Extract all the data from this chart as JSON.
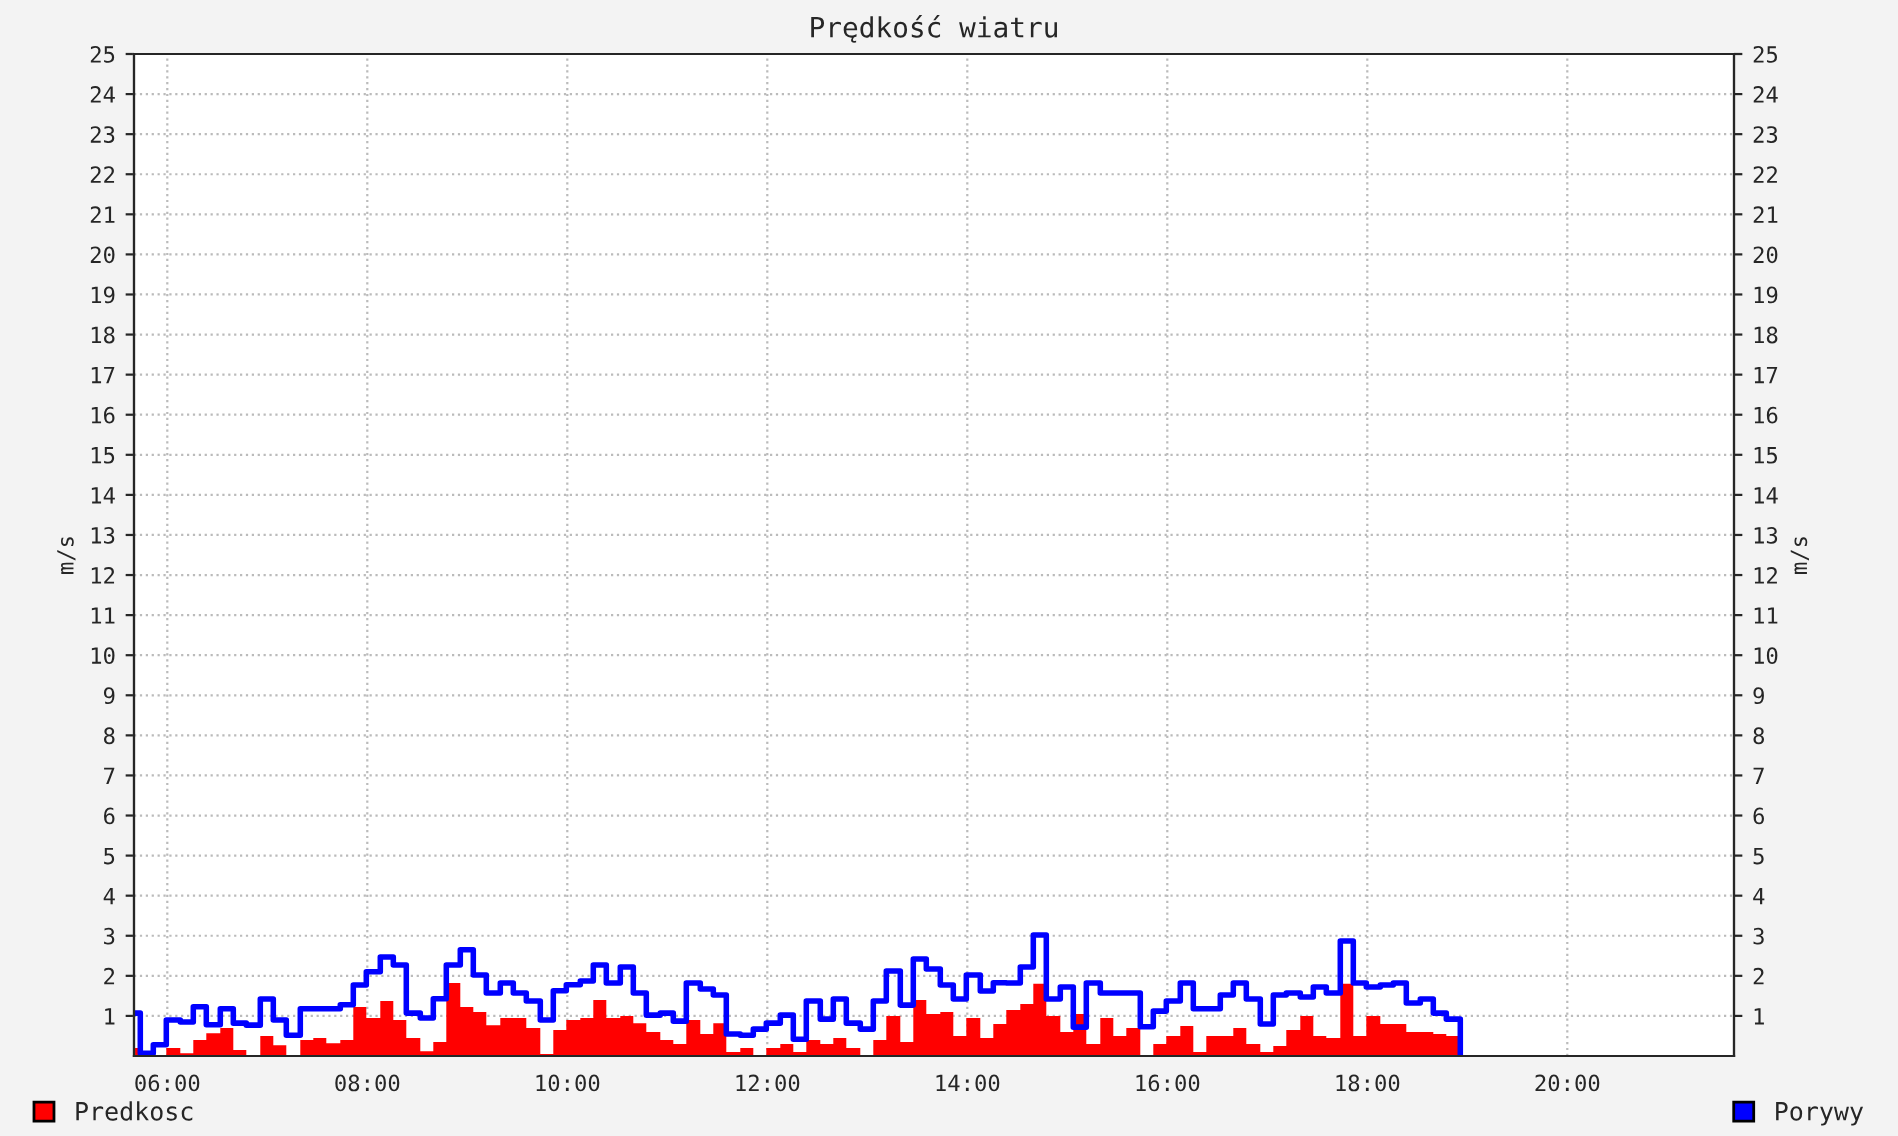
{
  "chart_data": {
    "type": "area",
    "title": "Prędkość wiatru",
    "ylabel": "m/s",
    "y2label": "m/s",
    "x": [
      5.67,
      5.73,
      5.86,
      5.99,
      6.13,
      6.26,
      6.39,
      6.53,
      6.66,
      6.79,
      6.93,
      7.06,
      7.19,
      7.33,
      7.46,
      7.59,
      7.73,
      7.86,
      7.99,
      8.13,
      8.26,
      8.39,
      8.53,
      8.66,
      8.79,
      8.93,
      9.06,
      9.19,
      9.33,
      9.46,
      9.59,
      9.73,
      9.86,
      9.99,
      10.13,
      10.26,
      10.39,
      10.53,
      10.66,
      10.79,
      10.93,
      11.06,
      11.19,
      11.33,
      11.46,
      11.59,
      11.73,
      11.86,
      11.99,
      12.13,
      12.26,
      12.39,
      12.53,
      12.66,
      12.79,
      12.93,
      13.06,
      13.19,
      13.33,
      13.46,
      13.59,
      13.73,
      13.86,
      13.99,
      14.13,
      14.26,
      14.39,
      14.53,
      14.66,
      14.79,
      14.93,
      15.06,
      15.19,
      15.33,
      15.46,
      15.59,
      15.73,
      15.86,
      15.99,
      16.13,
      16.26,
      16.39,
      16.53,
      16.66,
      16.79,
      16.93,
      17.06,
      17.19,
      17.33,
      17.46,
      17.59,
      17.73,
      17.86,
      17.99,
      18.13,
      18.26,
      18.39,
      18.53,
      18.66,
      18.79,
      18.93
    ],
    "series": [
      {
        "name": "Predkosc",
        "color": "#ff0000",
        "values": [
          0.2,
          0,
          0,
          0.2,
          0.07,
          0.4,
          0.57,
          0.7,
          0.15,
          0,
          0.5,
          0.27,
          0,
          0.4,
          0.45,
          0.32,
          0.4,
          1.22,
          0.95,
          1.37,
          0.9,
          0.45,
          0.12,
          0.35,
          1.82,
          1.22,
          1.1,
          0.77,
          0.95,
          0.95,
          0.7,
          0.05,
          0.65,
          0.9,
          0.95,
          1.4,
          0.95,
          1.0,
          0.82,
          0.6,
          0.4,
          0.3,
          0.9,
          0.55,
          0.82,
          0.1,
          0.2,
          0,
          0.2,
          0.3,
          0.1,
          0.4,
          0.3,
          0.45,
          0.2,
          0,
          0.4,
          1.0,
          0.35,
          1.4,
          1.05,
          1.1,
          0.5,
          0.95,
          0.45,
          0.8,
          1.15,
          1.3,
          1.8,
          1.0,
          0.6,
          1.05,
          0.3,
          0.95,
          0.5,
          0.7,
          0,
          0.3,
          0.5,
          0.75,
          0.1,
          0.5,
          0.5,
          0.7,
          0.3,
          0.1,
          0.25,
          0.65,
          1.0,
          0.5,
          0.45,
          1.8,
          0.5,
          1.0,
          0.8,
          0.8,
          0.6,
          0.6,
          0.55,
          0.5,
          0
        ]
      },
      {
        "name": "Porywy",
        "type": "step",
        "color": "#0000ff",
        "values": [
          1.07,
          0.07,
          0.28,
          0.9,
          0.85,
          1.23,
          0.78,
          1.18,
          0.82,
          0.77,
          1.42,
          0.9,
          0.52,
          1.18,
          1.18,
          1.18,
          1.28,
          1.77,
          2.1,
          2.47,
          2.27,
          1.07,
          0.95,
          1.43,
          2.27,
          2.65,
          2.02,
          1.57,
          1.82,
          1.57,
          1.37,
          0.9,
          1.63,
          1.78,
          1.87,
          2.27,
          1.82,
          2.22,
          1.57,
          1.02,
          1.07,
          0.87,
          1.82,
          1.67,
          1.52,
          0.55,
          0.52,
          0.67,
          0.82,
          1.02,
          0.42,
          1.37,
          0.92,
          1.42,
          0.82,
          0.67,
          1.37,
          2.12,
          1.27,
          2.42,
          2.17,
          1.77,
          1.42,
          2.02,
          1.62,
          1.83,
          1.82,
          2.22,
          3.02,
          1.42,
          1.72,
          0.72,
          1.82,
          1.57,
          1.57,
          1.57,
          0.73,
          1.12,
          1.37,
          1.82,
          1.18,
          1.18,
          1.52,
          1.82,
          1.42,
          0.8,
          1.52,
          1.57,
          1.47,
          1.72,
          1.57,
          2.87,
          1.82,
          1.72,
          1.77,
          1.82,
          1.32,
          1.42,
          1.07,
          0.92,
          0
        ]
      }
    ],
    "xlim": [
      5.667,
      21.667
    ],
    "xticks": [
      {
        "value": 6,
        "label": "06:00"
      },
      {
        "value": 8,
        "label": "08:00"
      },
      {
        "value": 10,
        "label": "10:00"
      },
      {
        "value": 12,
        "label": "12:00"
      },
      {
        "value": 14,
        "label": "14:00"
      },
      {
        "value": 16,
        "label": "16:00"
      },
      {
        "value": 18,
        "label": "18:00"
      },
      {
        "value": 20,
        "label": "20:00"
      }
    ],
    "ylim": [
      0,
      25
    ],
    "yticks": [
      1,
      2,
      3,
      4,
      5,
      6,
      7,
      8,
      9,
      10,
      11,
      12,
      13,
      14,
      15,
      16,
      17,
      18,
      19,
      20,
      21,
      22,
      23,
      24,
      25
    ],
    "y2lim": [
      0,
      25
    ],
    "y2ticks": [
      1,
      2,
      3,
      4,
      5,
      6,
      7,
      8,
      9,
      10,
      11,
      12,
      13,
      14,
      15,
      16,
      17,
      18,
      19,
      20,
      21,
      22,
      23,
      24,
      25
    ],
    "grid": true,
    "legend": "bottom"
  }
}
